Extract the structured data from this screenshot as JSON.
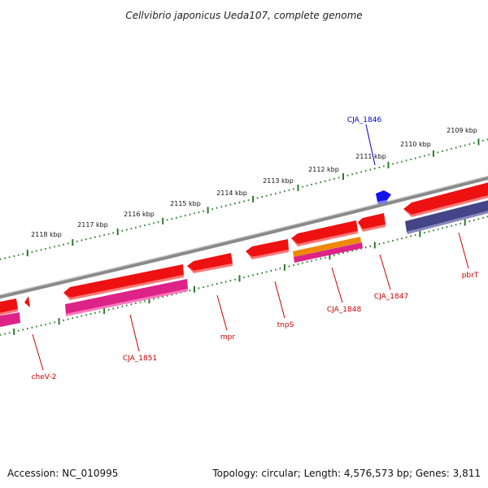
{
  "title": "Cellvibrio japonicus Ueda107, complete genome",
  "footer": {
    "accession": "Accession: NC_010995",
    "topology": "Topology: circular; Length: 4,576,573 bp; Genes: 3,811"
  },
  "colors": {
    "backbone": "#8a8a8a",
    "tick": "#2a7a2a",
    "label_red": "#cc0000",
    "label_blue": "#0000cc",
    "gene_red": "#ee1111",
    "gene_magenta": "#dd2288",
    "gene_orange": "#ee8800",
    "gene_navy": "#444488",
    "gene_blue": "#1111ee"
  },
  "scale_labels": [
    "2109 kbp",
    "2110 kbp",
    "2111 kbp",
    "2112 kbp",
    "2113 kbp",
    "2114 kbp",
    "2115 kbp",
    "2116 kbp",
    "2117 kbp",
    "2118 kbp"
  ],
  "gene_labels": [
    {
      "text": "CJA_1846",
      "color": "blue"
    },
    {
      "text": "pbrT",
      "color": "red"
    },
    {
      "text": "CJA_1847",
      "color": "red"
    },
    {
      "text": "CJA_1848",
      "color": "red"
    },
    {
      "text": "tnpS",
      "color": "red"
    },
    {
      "text": "mpr",
      "color": "red"
    },
    {
      "text": "CJA_1851",
      "color": "red"
    },
    {
      "text": "cheV-2",
      "color": "red"
    }
  ]
}
